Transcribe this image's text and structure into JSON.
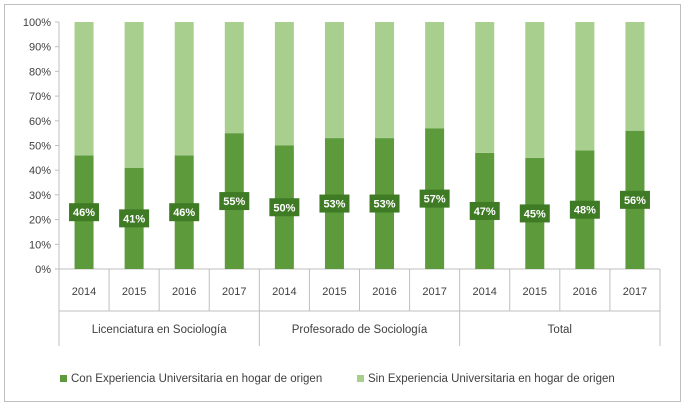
{
  "chart_data": {
    "type": "bar",
    "stacked": true,
    "percent": true,
    "categories": [
      "2014",
      "2015",
      "2016",
      "2017",
      "2014",
      "2015",
      "2016",
      "2017",
      "2014",
      "2015",
      "2016",
      "2017"
    ],
    "groups": [
      {
        "label": "Licenciatura en Sociología",
        "categories": [
          "2014",
          "2015",
          "2016",
          "2017"
        ]
      },
      {
        "label": "Profesorado de Sociología",
        "categories": [
          "2014",
          "2015",
          "2016",
          "2017"
        ]
      },
      {
        "label": "Total",
        "categories": [
          "2014",
          "2015",
          "2016",
          "2017"
        ]
      }
    ],
    "series": [
      {
        "name": "Con Experiencia Universitaria en hogar de origen",
        "values": [
          46,
          41,
          46,
          55,
          50,
          53,
          53,
          57,
          47,
          45,
          48,
          56
        ],
        "color": "#5c9a3c"
      },
      {
        "name": "Sin Experiencia Universitaria en hogar de origen",
        "values": [
          54,
          59,
          54,
          45,
          50,
          47,
          47,
          43,
          53,
          55,
          52,
          44
        ],
        "color": "#a9cf8f"
      }
    ],
    "data_labels": [
      "46%",
      "41%",
      "46%",
      "55%",
      "50%",
      "53%",
      "53%",
      "57%",
      "47%",
      "45%",
      "48%",
      "56%"
    ],
    "yticks": [
      "0%",
      "10%",
      "20%",
      "30%",
      "40%",
      "50%",
      "60%",
      "70%",
      "80%",
      "90%",
      "100%"
    ],
    "ylim": [
      0,
      100
    ],
    "grid": false,
    "legend_position": "bottom",
    "label_box_color": "#3f7a25"
  }
}
